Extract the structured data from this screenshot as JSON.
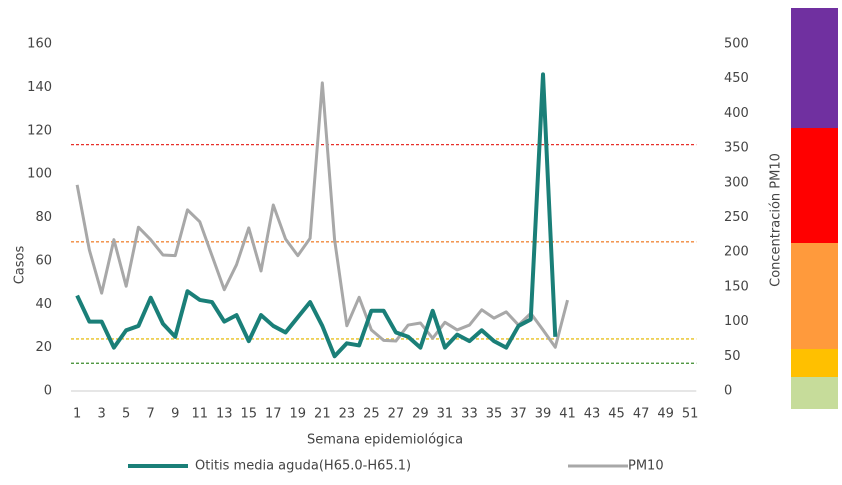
{
  "chart_data": {
    "type": "line",
    "categories": [
      "1",
      null,
      "3",
      null,
      "5",
      null,
      "7",
      null,
      "9",
      null,
      "11",
      null,
      "13",
      null,
      "15",
      null,
      "17",
      null,
      "19",
      null,
      "21",
      null,
      "23",
      null,
      "25",
      null,
      "27",
      null,
      "29",
      null,
      "31",
      null,
      "33",
      null,
      "35",
      null,
      "37",
      null,
      "39",
      null,
      "41",
      null,
      "43",
      null,
      "45",
      null,
      "47",
      null,
      "49",
      null,
      "51"
    ],
    "series": [
      {
        "name": "Otitis media aguda(H65.0-H65.1)",
        "color": "#1a7f78",
        "axis": "y",
        "values": [
          44,
          32,
          32,
          20,
          28,
          30,
          43,
          31,
          25,
          46,
          42,
          41,
          32,
          35,
          23,
          35,
          30,
          27,
          34,
          41,
          30,
          16,
          22,
          21,
          37,
          37,
          27,
          25,
          20,
          37,
          20,
          26,
          23,
          28,
          23,
          20,
          30,
          33,
          146,
          25,
          null,
          null,
          null,
          null,
          null,
          null,
          null,
          null,
          null,
          null,
          null
        ]
      },
      {
        "name": "PM10",
        "color": "#a8a8a8",
        "axis": "y2",
        "values": [
          297,
          203,
          141,
          218,
          151,
          236,
          218,
          196,
          195,
          261,
          244,
          195,
          146,
          182,
          235,
          173,
          268,
          219,
          195,
          220,
          444,
          218,
          94,
          135,
          88,
          73,
          72,
          95,
          98,
          76,
          99,
          88,
          95,
          117,
          105,
          114,
          95,
          112,
          88,
          63,
          131,
          null,
          null,
          null,
          null,
          null,
          null,
          null,
          null,
          null,
          null
        ]
      }
    ],
    "ylim": [
      0,
      160
    ],
    "yticks": [
      0,
      20,
      40,
      60,
      80,
      100,
      120,
      140,
      160
    ],
    "y2lim": [
      0,
      500
    ],
    "y2ticks": [
      0,
      50,
      100,
      150,
      200,
      250,
      300,
      350,
      400,
      450,
      500
    ],
    "ylabel": "Casos",
    "y2label": "Concentración PM10",
    "xlabel": "Semana epidemiológica",
    "thresholds": [
      {
        "value": 355,
        "color": "#e8302a"
      },
      {
        "value": 215,
        "color": "#f08a3c"
      },
      {
        "value": 75,
        "color": "#e8c020"
      },
      {
        "value": 40,
        "color": "#3a8a2a"
      }
    ],
    "grid": false
  }
}
